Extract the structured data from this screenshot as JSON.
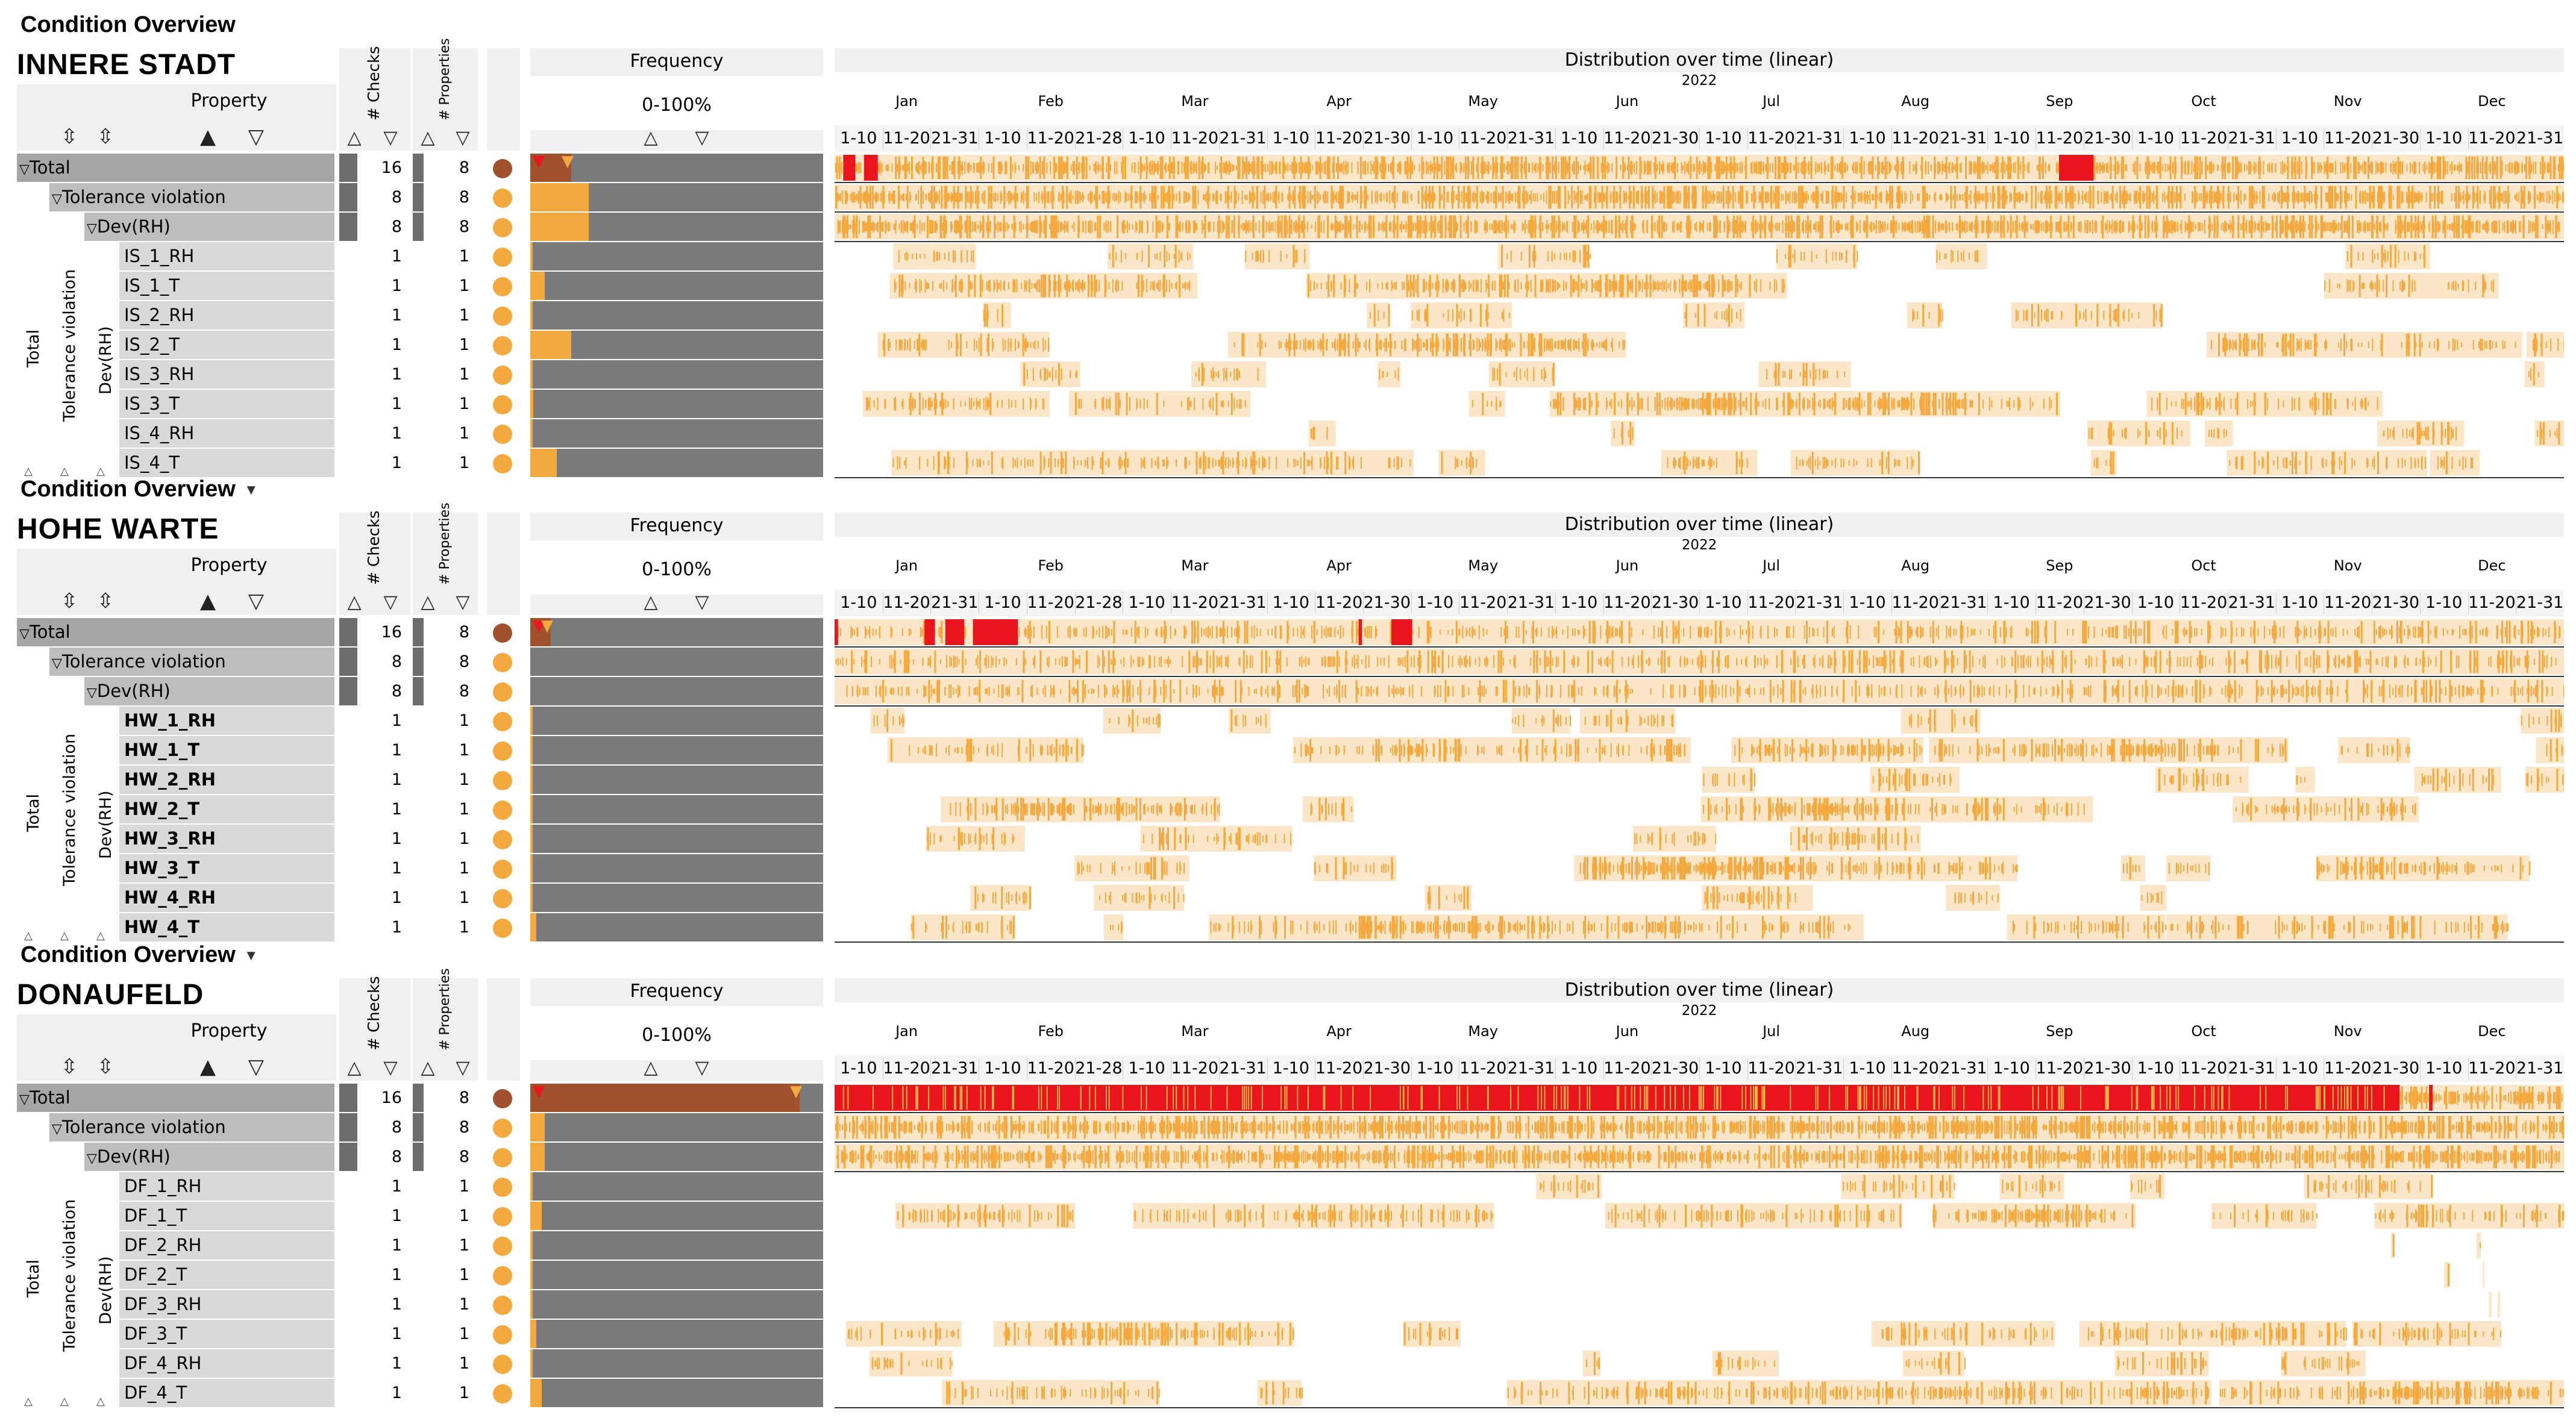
{
  "colors": {
    "orange": "#f4a93f",
    "dark_orange_total": "#a0522d",
    "bg_band": "#fce6c8",
    "red": "#e8161c",
    "pink_band": "#f2c8c0",
    "header_gray": "#f0f0f0",
    "dark_bar_bg": "#7a7a7a"
  },
  "columns": {
    "property": "Property",
    "checks": "# Checks",
    "properties": "# Properties",
    "frequency": "Frequency",
    "frequency_range": "0-100%",
    "distribution": "Distribution over time (linear)",
    "year": "2022"
  },
  "months": [
    "Jan",
    "Feb",
    "Mar",
    "Apr",
    "May",
    "Jun",
    "Jul",
    "Aug",
    "Sep",
    "Oct",
    "Nov",
    "Dec"
  ],
  "periods": [
    "1-10",
    "11-20",
    "21-31",
    "1-10",
    "11-20",
    "21-28",
    "1-10",
    "11-20",
    "21-31",
    "1-10",
    "11-20",
    "21-30",
    "1-10",
    "11-20",
    "21-31",
    "1-10",
    "11-20",
    "21-30",
    "1-10",
    "11-20",
    "21-31",
    "1-10",
    "11-20",
    "21-31",
    "1-10",
    "11-20",
    "21-30",
    "1-10",
    "11-20",
    "21-31",
    "1-10",
    "11-20",
    "21-30",
    "1-10",
    "11-20",
    "21-31"
  ],
  "group_labels": [
    "Total",
    "Tolerance violation",
    "Dev(RH)"
  ],
  "panels": [
    {
      "overview_title": "Condition Overview",
      "show_dropdown": false,
      "site": "INNERE STADT",
      "total": {
        "label": "Total",
        "checks": "16",
        "properties": "8",
        "freq": 0.14
      },
      "tolerance": {
        "label": "Tolerance violation",
        "checks": "8",
        "properties": "8",
        "freq": 0.2
      },
      "dev": {
        "label": "Dev(RH)",
        "checks": "8",
        "properties": "8",
        "freq": 0.2
      },
      "leaves": [
        {
          "name": "IS_1_RH",
          "checks": "1",
          "properties": "1",
          "freq": 0.0
        },
        {
          "name": "IS_1_T",
          "checks": "1",
          "properties": "1",
          "freq": 0.05
        },
        {
          "name": "IS_2_RH",
          "checks": "1",
          "properties": "1",
          "freq": 0.0
        },
        {
          "name": "IS_2_T",
          "checks": "1",
          "properties": "1",
          "freq": 0.14
        },
        {
          "name": "IS_3_RH",
          "checks": "1",
          "properties": "1",
          "freq": 0.0
        },
        {
          "name": "IS_3_T",
          "checks": "1",
          "properties": "1",
          "freq": 0.01
        },
        {
          "name": "IS_4_RH",
          "checks": "1",
          "properties": "1",
          "freq": 0.0
        },
        {
          "name": "IS_4_T",
          "checks": "1",
          "properties": "1",
          "freq": 0.09
        }
      ],
      "bold_leaves": false,
      "red_on_total": true,
      "red_full": false,
      "red_segments": [
        [
          0.005,
          0.012
        ],
        [
          0.017,
          0.025
        ],
        [
          0.708,
          0.728
        ]
      ]
    },
    {
      "overview_title": "Condition Overview",
      "show_dropdown": true,
      "site": "HOHE WARTE",
      "total": {
        "label": "Total",
        "checks": "16",
        "properties": "8",
        "freq": 0.07
      },
      "tolerance": {
        "label": "Tolerance violation",
        "checks": "8",
        "properties": "8",
        "freq": 0.0
      },
      "dev": {
        "label": "Dev(RH)",
        "checks": "8",
        "properties": "8",
        "freq": 0.0
      },
      "leaves": [
        {
          "name": "HW_1_RH",
          "checks": "1",
          "properties": "1",
          "freq": 0.0
        },
        {
          "name": "HW_1_T",
          "checks": "1",
          "properties": "1",
          "freq": 0.0
        },
        {
          "name": "HW_2_RH",
          "checks": "1",
          "properties": "1",
          "freq": 0.0
        },
        {
          "name": "HW_2_T",
          "checks": "1",
          "properties": "1",
          "freq": 0.0
        },
        {
          "name": "HW_3_RH",
          "checks": "1",
          "properties": "1",
          "freq": 0.0
        },
        {
          "name": "HW_3_T",
          "checks": "1",
          "properties": "1",
          "freq": 0.0
        },
        {
          "name": "HW_4_RH",
          "checks": "1",
          "properties": "1",
          "freq": 0.0
        },
        {
          "name": "HW_4_T",
          "checks": "1",
          "properties": "1",
          "freq": 0.02
        }
      ],
      "bold_leaves": true,
      "red_on_total": true,
      "red_full": false,
      "red_segments": [
        [
          0.0,
          0.002
        ],
        [
          0.052,
          0.058
        ],
        [
          0.064,
          0.075
        ],
        [
          0.08,
          0.106
        ],
        [
          0.303,
          0.305
        ],
        [
          0.322,
          0.334
        ]
      ]
    },
    {
      "overview_title": "Condition Overview",
      "show_dropdown": true,
      "site": "DONAUFELD",
      "total": {
        "label": "Total",
        "checks": "16",
        "properties": "8",
        "freq": 0.92
      },
      "tolerance": {
        "label": "Tolerance violation",
        "checks": "8",
        "properties": "8",
        "freq": 0.05
      },
      "dev": {
        "label": "Dev(RH)",
        "checks": "8",
        "properties": "8",
        "freq": 0.05
      },
      "leaves": [
        {
          "name": "DF_1_RH",
          "checks": "1",
          "properties": "1",
          "freq": 0.0
        },
        {
          "name": "DF_1_T",
          "checks": "1",
          "properties": "1",
          "freq": 0.04
        },
        {
          "name": "DF_2_RH",
          "checks": "1",
          "properties": "1",
          "freq": 0.0
        },
        {
          "name": "DF_2_T",
          "checks": "1",
          "properties": "1",
          "freq": 0.0
        },
        {
          "name": "DF_3_RH",
          "checks": "1",
          "properties": "1",
          "freq": 0.0
        },
        {
          "name": "DF_3_T",
          "checks": "1",
          "properties": "1",
          "freq": 0.02
        },
        {
          "name": "DF_4_RH",
          "checks": "1",
          "properties": "1",
          "freq": 0.0
        },
        {
          "name": "DF_4_T",
          "checks": "1",
          "properties": "1",
          "freq": 0.04
        }
      ],
      "bold_leaves": false,
      "red_on_total": true,
      "red_full": true,
      "red_segments": [
        [
          0.0,
          0.905
        ],
        [
          0.922,
          0.924
        ]
      ]
    }
  ]
}
